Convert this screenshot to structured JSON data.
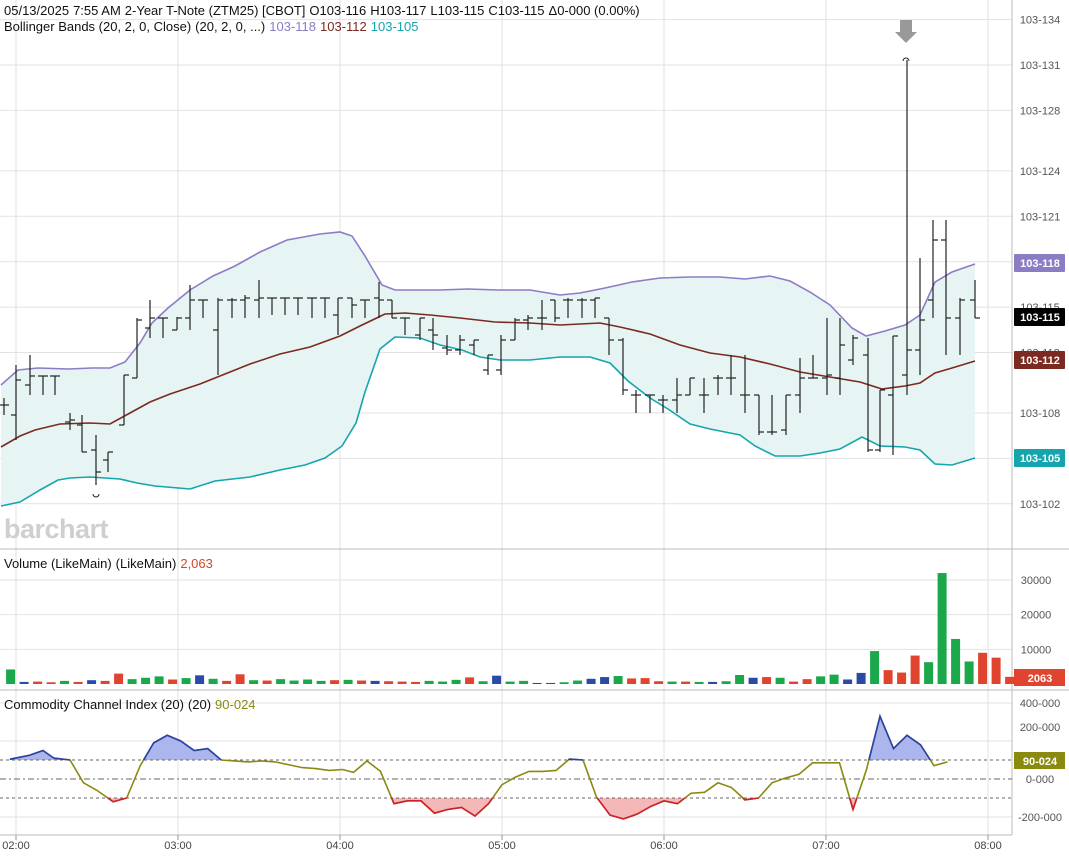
{
  "header": {
    "date": "05/13/2025",
    "time": "7:55 AM",
    "symbol_desc": "2-Year T-Note (ZTM25) [CBOT]",
    "open": "O103-116",
    "high": "H103-117",
    "low": "L103-115",
    "close": "C103-115",
    "change": "Δ0-000 (0.00%)",
    "bb_label": "Bollinger Bands (20, 2, 0, Close)",
    "bb_params": "(20, 2, 0, ...)",
    "bb_upper": "103-118",
    "bb_mid": "103-112",
    "bb_lower": "103-105",
    "volume_label": "Volume (LikeMain)",
    "volume_params": "(LikeMain)",
    "volume_value": "2,063",
    "cci_label": "Commodity Channel Index (20)",
    "cci_params": "(20)",
    "cci_value": "90-024"
  },
  "watermark": "barchart",
  "colors": {
    "upper_band": "#8c7cc4",
    "middle_band": "#7a2a20",
    "lower_band": "#14a5ad",
    "band_fill": "#e6f4f4",
    "price_bars": "#222222",
    "volume_up": "#1aa84a",
    "volume_down": "#e0442e",
    "volume_neutral": "#2a4aa8",
    "cci_line": "#8a8a10",
    "cci_above_fill": "#aab6ec",
    "cci_below_fill": "#f4b8b8",
    "cci_above_line": "#2a40b0",
    "cci_below_line": "#d02030",
    "last_price_tag": "#000000",
    "grid": "#e2e2e2"
  },
  "chart_data": {
    "type": "ohlc",
    "x_tick_labels": [
      "02:00",
      "03:00",
      "04:00",
      "05:00",
      "06:00",
      "07:00",
      "08:00"
    ],
    "y_tick_labels": [
      "103-134",
      "103-131",
      "103-128",
      "103-124",
      "103-121",
      "103-118",
      "103-115",
      "103-112",
      "103-108",
      "103-105",
      "103-102"
    ],
    "price_tags": [
      {
        "label": "103-118",
        "kind": "upper_band"
      },
      {
        "label": "103-115",
        "kind": "last_price"
      },
      {
        "label": "103-112",
        "kind": "middle_band"
      },
      {
        "label": "103-105",
        "kind": "lower_band"
      }
    ],
    "indicators": {
      "volume_ticks": [
        "30000",
        "20000",
        "10000"
      ],
      "volume_last_tag": "2063",
      "volume": [
        {
          "time": "01:58",
          "value": 4200,
          "dir": "up"
        },
        {
          "time": "02:03",
          "value": 600,
          "dir": "neutral"
        },
        {
          "time": "02:08",
          "value": 700,
          "dir": "down"
        },
        {
          "time": "02:13",
          "value": 500,
          "dir": "down"
        },
        {
          "time": "02:18",
          "value": 900,
          "dir": "up"
        },
        {
          "time": "02:23",
          "value": 600,
          "dir": "down"
        },
        {
          "time": "02:28",
          "value": 1100,
          "dir": "neutral"
        },
        {
          "time": "02:33",
          "value": 900,
          "dir": "down"
        },
        {
          "time": "02:38",
          "value": 3000,
          "dir": "down"
        },
        {
          "time": "02:43",
          "value": 1400,
          "dir": "up"
        },
        {
          "time": "02:48",
          "value": 1800,
          "dir": "up"
        },
        {
          "time": "02:53",
          "value": 2200,
          "dir": "up"
        },
        {
          "time": "02:58",
          "value": 1300,
          "dir": "down"
        },
        {
          "time": "03:03",
          "value": 1700,
          "dir": "up"
        },
        {
          "time": "03:08",
          "value": 2500,
          "dir": "neutral"
        },
        {
          "time": "03:13",
          "value": 1500,
          "dir": "up"
        },
        {
          "time": "03:18",
          "value": 900,
          "dir": "down"
        },
        {
          "time": "03:23",
          "value": 2800,
          "dir": "down"
        },
        {
          "time": "03:28",
          "value": 1100,
          "dir": "up"
        },
        {
          "time": "03:33",
          "value": 1000,
          "dir": "down"
        },
        {
          "time": "03:38",
          "value": 1400,
          "dir": "up"
        },
        {
          "time": "03:43",
          "value": 1000,
          "dir": "up"
        },
        {
          "time": "03:48",
          "value": 1300,
          "dir": "up"
        },
        {
          "time": "03:53",
          "value": 900,
          "dir": "up"
        },
        {
          "time": "03:58",
          "value": 1100,
          "dir": "down"
        },
        {
          "time": "04:03",
          "value": 1200,
          "dir": "up"
        },
        {
          "time": "04:08",
          "value": 1000,
          "dir": "down"
        },
        {
          "time": "04:13",
          "value": 900,
          "dir": "neutral"
        },
        {
          "time": "04:18",
          "value": 800,
          "dir": "down"
        },
        {
          "time": "04:23",
          "value": 700,
          "dir": "down"
        },
        {
          "time": "04:28",
          "value": 600,
          "dir": "down"
        },
        {
          "time": "04:33",
          "value": 900,
          "dir": "up"
        },
        {
          "time": "04:38",
          "value": 700,
          "dir": "up"
        },
        {
          "time": "04:43",
          "value": 1200,
          "dir": "up"
        },
        {
          "time": "04:48",
          "value": 1900,
          "dir": "down"
        },
        {
          "time": "04:53",
          "value": 800,
          "dir": "up"
        },
        {
          "time": "04:58",
          "value": 2400,
          "dir": "neutral"
        },
        {
          "time": "05:03",
          "value": 700,
          "dir": "up"
        },
        {
          "time": "05:08",
          "value": 900,
          "dir": "up"
        },
        {
          "time": "05:13",
          "value": 300,
          "dir": "neutral"
        },
        {
          "time": "05:18",
          "value": 300,
          "dir": "neutral"
        },
        {
          "time": "05:23",
          "value": 500,
          "dir": "up"
        },
        {
          "time": "05:28",
          "value": 1000,
          "dir": "up"
        },
        {
          "time": "05:33",
          "value": 1500,
          "dir": "neutral"
        },
        {
          "time": "05:38",
          "value": 2000,
          "dir": "neutral"
        },
        {
          "time": "05:43",
          "value": 2300,
          "dir": "up"
        },
        {
          "time": "05:48",
          "value": 1600,
          "dir": "down"
        },
        {
          "time": "05:53",
          "value": 1700,
          "dir": "down"
        },
        {
          "time": "05:58",
          "value": 800,
          "dir": "down"
        },
        {
          "time": "06:03",
          "value": 700,
          "dir": "up"
        },
        {
          "time": "06:08",
          "value": 700,
          "dir": "down"
        },
        {
          "time": "06:13",
          "value": 600,
          "dir": "up"
        },
        {
          "time": "06:18",
          "value": 600,
          "dir": "neutral"
        },
        {
          "time": "06:23",
          "value": 800,
          "dir": "up"
        },
        {
          "time": "06:28",
          "value": 2600,
          "dir": "up"
        },
        {
          "time": "06:33",
          "value": 1800,
          "dir": "neutral"
        },
        {
          "time": "06:38",
          "value": 2000,
          "dir": "down"
        },
        {
          "time": "06:43",
          "value": 1800,
          "dir": "up"
        },
        {
          "time": "06:48",
          "value": 700,
          "dir": "down"
        },
        {
          "time": "06:53",
          "value": 1400,
          "dir": "down"
        },
        {
          "time": "06:58",
          "value": 2200,
          "dir": "up"
        },
        {
          "time": "07:03",
          "value": 2700,
          "dir": "up"
        },
        {
          "time": "07:08",
          "value": 1300,
          "dir": "neutral"
        },
        {
          "time": "07:13",
          "value": 3200,
          "dir": "neutral"
        },
        {
          "time": "07:18",
          "value": 9500,
          "dir": "up"
        },
        {
          "time": "07:23",
          "value": 4000,
          "dir": "down"
        },
        {
          "time": "07:28",
          "value": 3300,
          "dir": "down"
        },
        {
          "time": "07:33",
          "value": 8200,
          "dir": "down"
        },
        {
          "time": "07:38",
          "value": 6300,
          "dir": "up"
        },
        {
          "time": "07:43",
          "value": 32000,
          "dir": "up"
        },
        {
          "time": "07:48",
          "value": 13000,
          "dir": "up"
        },
        {
          "time": "07:53",
          "value": 6500,
          "dir": "up"
        },
        {
          "time": "07:58",
          "value": 9000,
          "dir": "down"
        },
        {
          "time": "08:03",
          "value": 7600,
          "dir": "down"
        },
        {
          "time": "08:08",
          "value": 2063,
          "dir": "down"
        }
      ],
      "cci_ticks": [
        "400-000",
        "200-000",
        "0-000",
        "-200-000"
      ],
      "cci_last_tag": "90-024",
      "cci_reference_levels": [
        100,
        0,
        -100
      ],
      "cci": [
        {
          "time": "01:58",
          "value": 105
        },
        {
          "time": "02:05",
          "value": 125
        },
        {
          "time": "02:10",
          "value": 150
        },
        {
          "time": "02:14",
          "value": 110
        },
        {
          "time": "02:20",
          "value": 100
        },
        {
          "time": "02:25",
          "value": -20
        },
        {
          "time": "02:30",
          "value": -60
        },
        {
          "time": "02:36",
          "value": -120
        },
        {
          "time": "02:41",
          "value": -100
        },
        {
          "time": "02:46",
          "value": 70
        },
        {
          "time": "02:51",
          "value": 190
        },
        {
          "time": "02:56",
          "value": 230
        },
        {
          "time": "03:01",
          "value": 200
        },
        {
          "time": "03:06",
          "value": 150
        },
        {
          "time": "03:11",
          "value": 160
        },
        {
          "time": "03:16",
          "value": 100
        },
        {
          "time": "03:21",
          "value": 95
        },
        {
          "time": "03:26",
          "value": 90
        },
        {
          "time": "03:31",
          "value": 95
        },
        {
          "time": "03:36",
          "value": 90
        },
        {
          "time": "03:41",
          "value": 75
        },
        {
          "time": "03:46",
          "value": 60
        },
        {
          "time": "03:51",
          "value": 55
        },
        {
          "time": "03:56",
          "value": 45
        },
        {
          "time": "04:01",
          "value": 50
        },
        {
          "time": "04:05",
          "value": 35
        },
        {
          "time": "04:10",
          "value": 95
        },
        {
          "time": "04:15",
          "value": 40
        },
        {
          "time": "04:20",
          "value": -130
        },
        {
          "time": "04:25",
          "value": -115
        },
        {
          "time": "04:30",
          "value": -115
        },
        {
          "time": "04:35",
          "value": -180
        },
        {
          "time": "04:40",
          "value": -160
        },
        {
          "time": "04:45",
          "value": -150
        },
        {
          "time": "04:50",
          "value": -195
        },
        {
          "time": "04:55",
          "value": -130
        },
        {
          "time": "05:00",
          "value": -30
        },
        {
          "time": "05:05",
          "value": 10
        },
        {
          "time": "05:10",
          "value": 40
        },
        {
          "time": "05:15",
          "value": 40
        },
        {
          "time": "05:20",
          "value": 45
        },
        {
          "time": "05:25",
          "value": 105
        },
        {
          "time": "05:30",
          "value": 100
        },
        {
          "time": "05:35",
          "value": -95
        },
        {
          "time": "05:40",
          "value": -190
        },
        {
          "time": "05:45",
          "value": -210
        },
        {
          "time": "05:50",
          "value": -185
        },
        {
          "time": "05:55",
          "value": -145
        },
        {
          "time": "06:00",
          "value": -115
        },
        {
          "time": "06:05",
          "value": -130
        },
        {
          "time": "06:10",
          "value": -75
        },
        {
          "time": "06:15",
          "value": -70
        },
        {
          "time": "06:20",
          "value": -20
        },
        {
          "time": "06:25",
          "value": -45
        },
        {
          "time": "06:30",
          "value": -110
        },
        {
          "time": "06:35",
          "value": -100
        },
        {
          "time": "06:40",
          "value": -20
        },
        {
          "time": "06:45",
          "value": 5
        },
        {
          "time": "06:50",
          "value": 25
        },
        {
          "time": "06:55",
          "value": 85
        },
        {
          "time": "07:00",
          "value": 85
        },
        {
          "time": "07:05",
          "value": 85
        },
        {
          "time": "07:10",
          "value": -160
        },
        {
          "time": "07:15",
          "value": 50
        },
        {
          "time": "07:20",
          "value": 330
        },
        {
          "time": "07:25",
          "value": 160
        },
        {
          "time": "07:30",
          "value": 230
        },
        {
          "time": "07:35",
          "value": 180
        },
        {
          "time": "07:40",
          "value": 70
        },
        {
          "time": "07:45",
          "value": 90
        }
      ]
    }
  }
}
